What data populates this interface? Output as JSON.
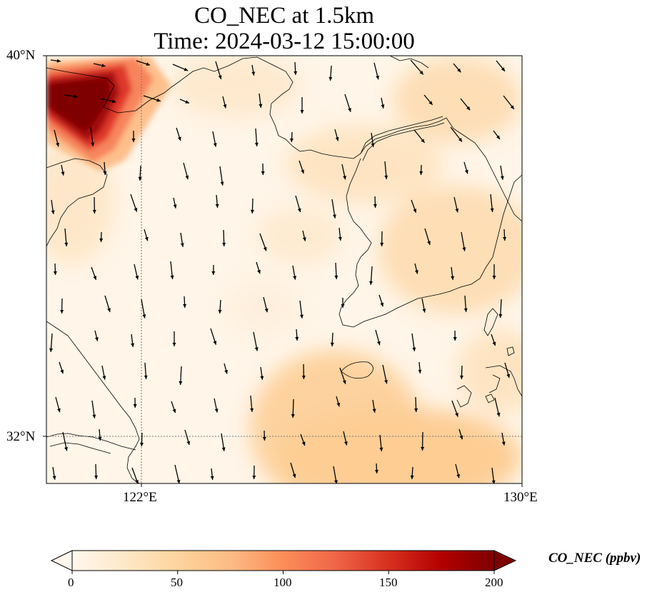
{
  "title": {
    "line1": "CO_NEC at 1.5km",
    "line2": "Time: 2024-03-12 15:00:00"
  },
  "map": {
    "lon_range": [
      119,
      130
    ],
    "lat_range": [
      31,
      40
    ],
    "gridlines": {
      "lons": [
        122
      ],
      "lats": [
        32
      ],
      "style": "dotted"
    },
    "lat_ticks": [
      {
        "value": 40,
        "label": "40°N"
      },
      {
        "value": 32,
        "label": "32°N"
      }
    ],
    "lon_ticks": [
      {
        "value": 122,
        "label": "122°E"
      },
      {
        "value": 130,
        "label": "130°E"
      }
    ],
    "field_colors": {
      "background": "#fff5e8",
      "moderate": "#fdd49e",
      "high": "#ef6548",
      "max": "#7f0000"
    },
    "arrow_color": "#000000",
    "coastline_color": "#000000"
  },
  "colorbar": {
    "label": "CO_NEC (ppbv)",
    "min": 0,
    "max": 200,
    "ticks": [
      "0",
      "50",
      "100",
      "150",
      "200"
    ],
    "extend": "both",
    "colors": [
      "#fff7ec",
      "#fee8c8",
      "#fdd49e",
      "#fdbb84",
      "#fc8d59",
      "#ef6548",
      "#d7301f",
      "#b30000",
      "#7f0000"
    ]
  }
}
